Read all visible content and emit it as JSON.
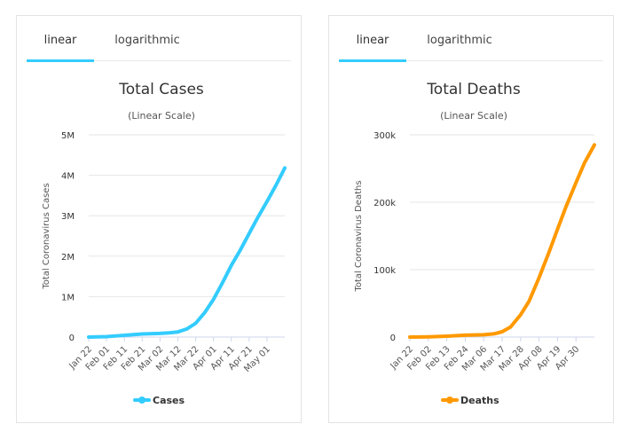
{
  "panels": [
    {
      "tabs": {
        "linear": "linear",
        "log": "logarithmic",
        "active": "linear"
      }
    },
    {
      "tabs": {
        "linear": "linear",
        "log": "logarithmic",
        "active": "linear"
      }
    }
  ],
  "chart_data": [
    {
      "type": "line",
      "title": "Total Cases",
      "subtitle": "(Linear Scale)",
      "xlabel": "",
      "ylabel": "Total Coronavirus Cases",
      "color": "#33ccff",
      "ylim": [
        0,
        5000000
      ],
      "y_ticks": [
        0,
        1000000,
        2000000,
        3000000,
        4000000,
        5000000
      ],
      "y_tick_labels": [
        "0",
        "1M",
        "2M",
        "3M",
        "4M",
        "5M"
      ],
      "x_tick_labels": [
        "Jan 22",
        "Feb 01",
        "Feb 11",
        "Feb 21",
        "Mar 02",
        "Mar 12",
        "Mar 22",
        "Apr 01",
        "Apr 11",
        "Apr 21",
        "May 01"
      ],
      "x_tick_dates": [
        "2020-01-22",
        "2020-02-01",
        "2020-02-11",
        "2020-02-21",
        "2020-03-02",
        "2020-03-12",
        "2020-03-22",
        "2020-04-01",
        "2020-04-11",
        "2020-04-21",
        "2020-05-01"
      ],
      "legend": "bottom-center",
      "grid": true,
      "series": [
        {
          "name": "Cases",
          "x": [
            "2020-01-22",
            "2020-02-01",
            "2020-02-11",
            "2020-02-21",
            "2020-03-02",
            "2020-03-07",
            "2020-03-12",
            "2020-03-17",
            "2020-03-22",
            "2020-03-27",
            "2020-04-01",
            "2020-04-06",
            "2020-04-11",
            "2020-04-16",
            "2020-04-21",
            "2020-04-26",
            "2020-05-01",
            "2020-05-06",
            "2020-05-11"
          ],
          "values": [
            600,
            12000,
            43000,
            77000,
            90000,
            106000,
            128000,
            200000,
            340000,
            600000,
            930000,
            1340000,
            1770000,
            2150000,
            2560000,
            2970000,
            3350000,
            3750000,
            4180000
          ]
        }
      ]
    },
    {
      "type": "line",
      "title": "Total Deaths",
      "subtitle": "(Linear Scale)",
      "xlabel": "",
      "ylabel": "Total Coronavirus Deaths",
      "color": "#ff9900",
      "ylim": [
        0,
        300000
      ],
      "y_ticks": [
        0,
        100000,
        200000,
        300000
      ],
      "y_tick_labels": [
        "0",
        "100k",
        "200k",
        "300k"
      ],
      "x_tick_labels": [
        "Jan 22",
        "Feb 02",
        "Feb 13",
        "Feb 24",
        "Mar 06",
        "Mar 17",
        "Mar 28",
        "Apr 08",
        "Apr 19",
        "Apr 30"
      ],
      "x_tick_dates": [
        "2020-01-22",
        "2020-02-02",
        "2020-02-13",
        "2020-02-24",
        "2020-03-06",
        "2020-03-17",
        "2020-03-28",
        "2020-04-08",
        "2020-04-19",
        "2020-04-30"
      ],
      "legend": "bottom-center",
      "grid": true,
      "series": [
        {
          "name": "Deaths",
          "x": [
            "2020-01-22",
            "2020-02-02",
            "2020-02-13",
            "2020-02-24",
            "2020-03-06",
            "2020-03-12",
            "2020-03-17",
            "2020-03-22",
            "2020-03-28",
            "2020-04-02",
            "2020-04-08",
            "2020-04-14",
            "2020-04-19",
            "2020-04-24",
            "2020-04-30",
            "2020-05-05",
            "2020-05-11"
          ],
          "values": [
            17,
            360,
            1380,
            2700,
            3460,
            4700,
            7900,
            15000,
            33000,
            53000,
            88000,
            126000,
            160000,
            193000,
            229000,
            258000,
            285000
          ]
        }
      ]
    }
  ]
}
